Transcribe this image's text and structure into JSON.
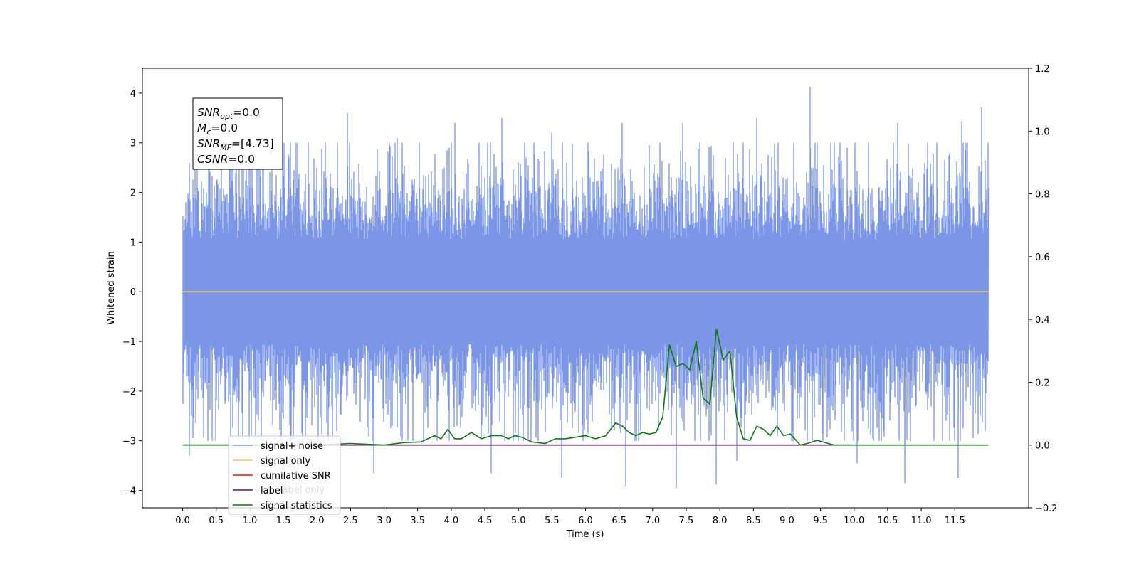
{
  "chart_data": {
    "type": "line",
    "title": "",
    "xlabel": "Time (s)",
    "ylabel": "Whitened strain",
    "y2label": "",
    "xlim": [
      -0.6,
      12.6
    ],
    "ylim": [
      -4.35,
      4.5
    ],
    "y2lim": [
      -0.2,
      1.2
    ],
    "x_ticks": [
      0.0,
      0.5,
      1.0,
      1.5,
      2.0,
      2.5,
      3.0,
      3.5,
      4.0,
      4.5,
      5.0,
      5.5,
      6.0,
      6.5,
      7.0,
      7.5,
      8.0,
      8.5,
      9.0,
      9.5,
      10.0,
      10.5,
      11.0,
      11.5
    ],
    "x_tick_labels": [
      "0.0",
      "0.5",
      "1.0",
      "1.5",
      "2.0",
      "2.5",
      "3.0",
      "3.5",
      "4.0",
      "4.5",
      "5.0",
      "5.5",
      "6.0",
      "6.5",
      "7.0",
      "7.5",
      "8.0",
      "8.5",
      "9.0",
      "9.5",
      "10.0",
      "10.5",
      "11.0",
      "11.5"
    ],
    "y_ticks": [
      4,
      3,
      2,
      1,
      0,
      -1,
      -2,
      -3,
      -4
    ],
    "y_tick_labels": [
      "4",
      "3",
      "2",
      "1",
      "0",
      "−1",
      "−2",
      "−3",
      "−4"
    ],
    "y2_ticks": [
      1.2,
      1.0,
      0.8,
      0.6,
      0.4,
      0.2,
      0.0,
      -0.2
    ],
    "y2_tick_labels": [
      "1.2",
      "1.0",
      "0.8",
      "0.6",
      "0.4",
      "0.2",
      "0.0",
      "−0.2"
    ],
    "grid": false,
    "legend_position": "bottom-left",
    "legend": [
      {
        "label": "signal+ noise",
        "color": "#7b96e6"
      },
      {
        "label": "signal only",
        "color": "#f5c36b"
      },
      {
        "label": "cumilative SNR",
        "color": "#ee1111"
      },
      {
        "label": "label",
        "color": "#6a0f6a"
      },
      {
        "label": "signal statistics",
        "color": "#0d7a0d"
      }
    ],
    "ghost_label": "label only",
    "stats_box": [
      {
        "name": "SNR",
        "sub": "opt",
        "value": "=0.0"
      },
      {
        "name": "M",
        "sub": "c",
        "value": "=0.0"
      },
      {
        "name": "SNR",
        "sub": "MF",
        "value": "=[4.73]"
      },
      {
        "name": "CSNR",
        "sub": "",
        "value": "=0.0"
      }
    ],
    "series": [
      {
        "name": "signal+ noise",
        "axis": "left",
        "color": "#7b96e6",
        "x_range": [
          0.0,
          12.0
        ],
        "typical_range": [
          -1.6,
          1.6
        ],
        "peaks": [
          {
            "x": 0.05,
            "y": 1.8
          },
          {
            "x": 0.1,
            "y": 2.6
          },
          {
            "x": 0.18,
            "y": 2.6
          },
          {
            "x": 0.4,
            "y": 3.0
          },
          {
            "x": 0.75,
            "y": 3.0
          },
          {
            "x": 1.15,
            "y": 3.3
          },
          {
            "x": 1.6,
            "y": 3.0
          },
          {
            "x": 2.45,
            "y": 3.6
          },
          {
            "x": 3.2,
            "y": 3.1
          },
          {
            "x": 4.05,
            "y": 3.4
          },
          {
            "x": 4.75,
            "y": 3.5
          },
          {
            "x": 5.5,
            "y": 3.2
          },
          {
            "x": 6.55,
            "y": 3.4
          },
          {
            "x": 7.45,
            "y": 3.4
          },
          {
            "x": 8.55,
            "y": 3.5
          },
          {
            "x": 9.35,
            "y": 4.12
          },
          {
            "x": 10.65,
            "y": 3.4
          },
          {
            "x": 11.6,
            "y": 3.43
          },
          {
            "x": 11.9,
            "y": 3.72
          }
        ],
        "troughs": [
          {
            "x": 0.1,
            "y": -3.3
          },
          {
            "x": 0.9,
            "y": -3.0
          },
          {
            "x": 1.6,
            "y": -3.0
          },
          {
            "x": 2.85,
            "y": -3.65
          },
          {
            "x": 4.6,
            "y": -3.65
          },
          {
            "x": 5.65,
            "y": -3.75
          },
          {
            "x": 6.6,
            "y": -3.92
          },
          {
            "x": 7.35,
            "y": -3.95
          },
          {
            "x": 7.95,
            "y": -3.88
          },
          {
            "x": 8.25,
            "y": -3.4
          },
          {
            "x": 10.05,
            "y": -3.45
          },
          {
            "x": 10.75,
            "y": -3.85
          },
          {
            "x": 11.55,
            "y": -3.75
          },
          {
            "x": 11.95,
            "y": -2.8
          }
        ]
      },
      {
        "name": "signal only",
        "axis": "left",
        "color": "#f5c36b",
        "x": [
          0.0,
          12.0
        ],
        "y": [
          0.0,
          0.0
        ]
      },
      {
        "name": "label",
        "axis": "right",
        "color": "#6a0f6a",
        "x": [
          0.0,
          9.95
        ],
        "y": [
          0.0,
          0.0
        ]
      },
      {
        "name": "signal statistics",
        "axis": "right",
        "color": "#0d7a0d",
        "x": [
          0.0,
          1.0,
          2.0,
          2.5,
          3.0,
          3.3,
          3.55,
          3.75,
          3.85,
          3.95,
          4.05,
          4.15,
          4.3,
          4.45,
          4.6,
          4.75,
          4.85,
          4.95,
          5.05,
          5.2,
          5.4,
          5.55,
          5.7,
          5.85,
          6.0,
          6.15,
          6.3,
          6.45,
          6.55,
          6.65,
          6.75,
          6.85,
          6.95,
          7.05,
          7.15,
          7.25,
          7.35,
          7.45,
          7.55,
          7.65,
          7.75,
          7.85,
          7.95,
          8.05,
          8.15,
          8.25,
          8.35,
          8.45,
          8.55,
          8.65,
          8.75,
          8.85,
          8.95,
          9.05,
          9.2,
          9.3,
          9.45,
          9.7,
          10.0,
          12.0
        ],
        "y": [
          0.0,
          0.0,
          0.0,
          0.005,
          0.0,
          0.008,
          0.01,
          0.03,
          0.02,
          0.05,
          0.02,
          0.02,
          0.04,
          0.02,
          0.03,
          0.03,
          0.02,
          0.03,
          0.025,
          0.01,
          0.005,
          0.02,
          0.02,
          0.025,
          0.03,
          0.02,
          0.03,
          0.07,
          0.06,
          0.04,
          0.03,
          0.04,
          0.035,
          0.04,
          0.09,
          0.32,
          0.25,
          0.26,
          0.24,
          0.33,
          0.15,
          0.13,
          0.37,
          0.27,
          0.3,
          0.09,
          0.02,
          0.015,
          0.06,
          0.05,
          0.03,
          0.06,
          0.03,
          0.035,
          0.0,
          0.005,
          0.015,
          0.0,
          0.0,
          0.0
        ]
      }
    ]
  }
}
